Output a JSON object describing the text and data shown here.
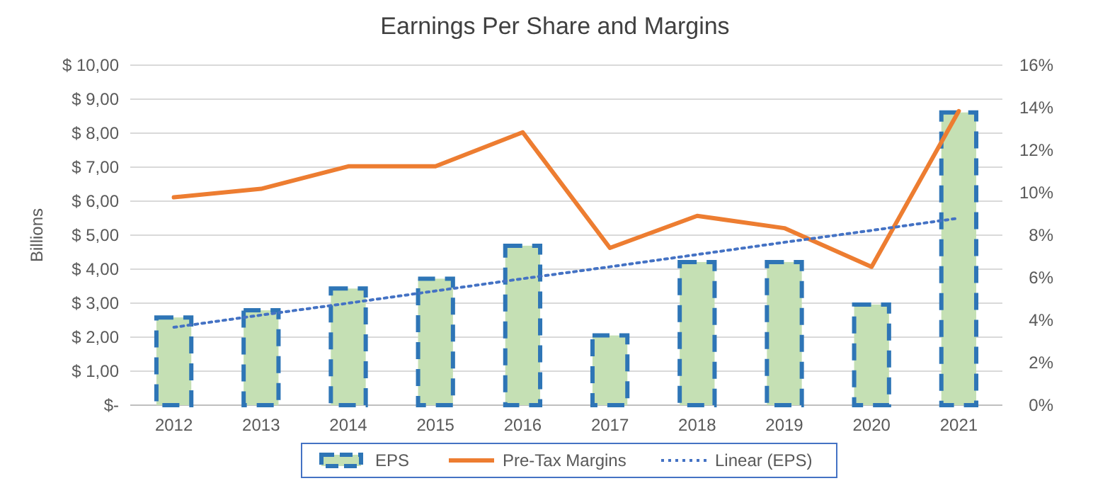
{
  "chart_data": {
    "type": "bar",
    "title": "Earnings Per Share and Margins",
    "ylabel": "Billions",
    "categories": [
      "2012",
      "2013",
      "2014",
      "2015",
      "2016",
      "2017",
      "2018",
      "2019",
      "2020",
      "2021"
    ],
    "series": [
      {
        "name": "EPS",
        "color": "#c5e0b4",
        "values": [
          2.58,
          2.79,
          3.43,
          3.72,
          4.69,
          2.05,
          4.21,
          4.21,
          2.96,
          8.61
        ]
      },
      {
        "name": "Pre-Tax Margins",
        "type": "line",
        "axis": "y2",
        "color": "#ed7d31",
        "values": [
          9.78,
          10.18,
          11.24,
          11.24,
          12.84,
          7.4,
          8.91,
          8.33,
          6.51,
          13.84
        ]
      },
      {
        "name": "Linear (EPS)",
        "type": "line",
        "line_style": "dotted",
        "color": "#4472c4",
        "values": [
          2.29,
          2.65,
          3.0,
          3.36,
          3.72,
          4.07,
          4.43,
          4.79,
          5.14,
          5.5
        ]
      }
    ],
    "ylim": [
      0,
      10
    ],
    "yticks": [
      {
        "value": 0,
        "label": "$-"
      },
      {
        "value": 1,
        "label": "$ 1,00"
      },
      {
        "value": 2,
        "label": "$ 2,00"
      },
      {
        "value": 3,
        "label": "$ 3,00"
      },
      {
        "value": 4,
        "label": "$ 4,00"
      },
      {
        "value": 5,
        "label": "$ 5,00"
      },
      {
        "value": 6,
        "label": "$ 6,00"
      },
      {
        "value": 7,
        "label": "$ 7,00"
      },
      {
        "value": 8,
        "label": "$ 8,00"
      },
      {
        "value": 9,
        "label": "$ 9,00"
      },
      {
        "value": 10,
        "label": "$ 10,00"
      }
    ],
    "y2lim": [
      0,
      16
    ],
    "y2ticks": [
      {
        "value": 0,
        "label": "0%"
      },
      {
        "value": 2,
        "label": "2%"
      },
      {
        "value": 4,
        "label": "4%"
      },
      {
        "value": 6,
        "label": "6%"
      },
      {
        "value": 8,
        "label": "8%"
      },
      {
        "value": 10,
        "label": "10%"
      },
      {
        "value": 12,
        "label": "12%"
      },
      {
        "value": 14,
        "label": "14%"
      },
      {
        "value": 16,
        "label": "16%"
      }
    ],
    "grid": "y",
    "legend": "bottom"
  }
}
